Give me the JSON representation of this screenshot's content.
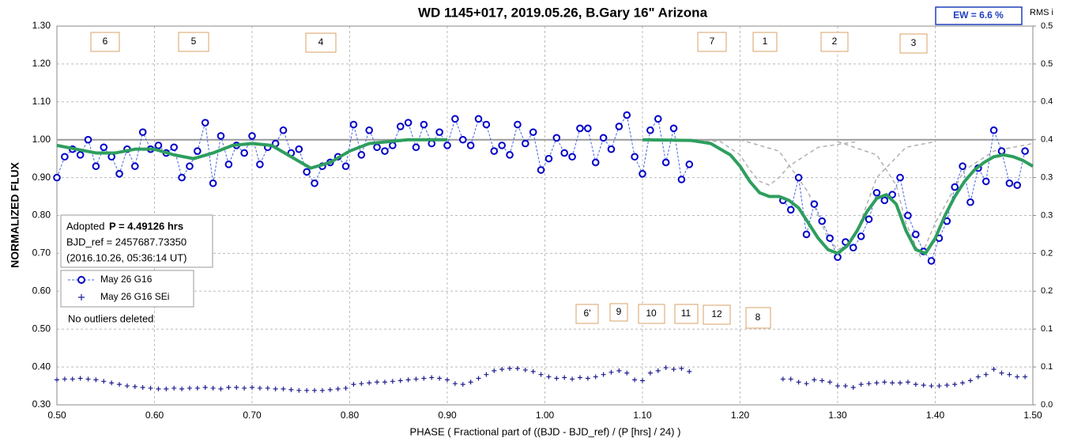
{
  "chart_data": {
    "type": "scatter",
    "title": "WD 1145+017, 2019.05.26, B.Gary 16\" Arizona",
    "xlabel": "PHASE ( Fractional part of ((BJD - BJD_ref) / (P [hrs] / 24) )",
    "ylabel": "NORMALIZED FLUX",
    "y2label": "RMS i",
    "xlim": [
      0.5,
      1.5
    ],
    "xticks": [
      {
        "value": 0.5,
        "label": "0.50"
      },
      {
        "value": 0.6,
        "label": "0.60"
      },
      {
        "value": 0.7,
        "label": "0.70"
      },
      {
        "value": 0.8,
        "label": "0.80"
      },
      {
        "value": 0.9,
        "label": "0.90"
      },
      {
        "value": 1.0,
        "label": "1.00"
      },
      {
        "value": 1.1,
        "label": "1.10"
      },
      {
        "value": 1.2,
        "label": "1.20"
      },
      {
        "value": 1.3,
        "label": "1.30"
      },
      {
        "value": 1.4,
        "label": "1.40"
      },
      {
        "value": 1.5,
        "label": "1.50"
      }
    ],
    "ylim": [
      0.3,
      1.3
    ],
    "yticks": [
      {
        "value": 0.3,
        "label": "0.30"
      },
      {
        "value": 0.4,
        "label": "0.40"
      },
      {
        "value": 0.5,
        "label": "0.50"
      },
      {
        "value": 0.6,
        "label": "0.60"
      },
      {
        "value": 0.7,
        "label": "0.70"
      },
      {
        "value": 0.8,
        "label": "0.80"
      },
      {
        "value": 0.9,
        "label": "0.90"
      },
      {
        "value": 1.0,
        "label": "1.00"
      },
      {
        "value": 1.1,
        "label": "1.10"
      },
      {
        "value": 1.2,
        "label": "1.20"
      },
      {
        "value": 1.3,
        "label": "1.30"
      }
    ],
    "y2lim": [
      0,
      0.5
    ],
    "y2ticks": [
      {
        "value": 0,
        "label": "0.0"
      },
      {
        "value": 0.05,
        "label": "0.1"
      },
      {
        "value": 0.1,
        "label": "0.1"
      },
      {
        "value": 0.15,
        "label": "0.2"
      },
      {
        "value": 0.2,
        "label": "0.2"
      },
      {
        "value": 0.25,
        "label": "0.3"
      },
      {
        "value": 0.3,
        "label": "0.3"
      },
      {
        "value": 0.35,
        "label": "0.4"
      },
      {
        "value": 0.4,
        "label": "0.4"
      },
      {
        "value": 0.45,
        "label": "0.5"
      },
      {
        "value": 0.5,
        "label": "0.5"
      }
    ],
    "grid": true,
    "baseline": 1,
    "series": [
      {
        "name": "May 26 G16",
        "color": "#0000c8",
        "marker": "circle",
        "x": [
          0.5,
          0.508,
          0.516,
          0.524,
          0.532,
          0.54,
          0.548,
          0.556,
          0.564,
          0.572,
          0.58,
          0.588,
          0.596,
          0.604,
          0.612,
          0.62,
          0.628,
          0.636,
          0.644,
          0.652,
          0.66,
          0.668,
          0.676,
          0.684,
          0.692,
          0.7,
          0.708,
          0.716,
          0.724,
          0.732,
          0.74,
          0.748,
          0.756,
          0.764,
          0.772,
          0.78,
          0.788,
          0.796,
          0.804,
          0.812,
          0.82,
          0.828,
          0.836,
          0.844,
          0.852,
          0.86,
          0.868,
          0.876,
          0.884,
          0.892,
          0.9,
          0.908,
          0.916,
          0.924,
          0.932,
          0.94,
          0.948,
          0.956,
          0.964,
          0.972,
          0.98,
          0.988,
          0.996,
          1.004,
          1.012,
          1.02,
          1.028,
          1.036,
          1.044,
          1.052,
          1.06,
          1.068,
          1.076,
          1.084,
          1.092,
          1.1,
          1.108,
          1.116,
          1.124,
          1.132,
          1.14,
          1.148,
          1.244,
          1.252,
          1.26,
          1.268,
          1.276,
          1.284,
          1.292,
          1.3,
          1.308,
          1.316,
          1.324,
          1.332,
          1.34,
          1.348,
          1.356,
          1.364,
          1.372,
          1.38,
          1.388,
          1.396,
          1.404,
          1.412,
          1.42,
          1.428,
          1.436,
          1.444,
          1.452,
          1.46,
          1.468,
          1.476,
          1.484,
          1.492
        ],
        "values": [
          0.9,
          0.955,
          0.975,
          0.96,
          1.0,
          0.93,
          0.98,
          0.955,
          0.91,
          0.975,
          0.93,
          1.02,
          0.975,
          0.985,
          0.965,
          0.98,
          0.9,
          0.93,
          0.97,
          1.045,
          0.885,
          1.01,
          0.935,
          0.985,
          0.965,
          1.01,
          0.935,
          0.98,
          0.99,
          1.025,
          0.965,
          0.975,
          0.915,
          0.885,
          0.93,
          0.94,
          0.955,
          0.93,
          1.04,
          0.96,
          1.025,
          0.98,
          0.97,
          0.985,
          1.035,
          1.045,
          0.98,
          1.04,
          0.99,
          1.02,
          0.985,
          1.055,
          1.0,
          0.985,
          1.055,
          1.04,
          0.97,
          0.985,
          0.96,
          1.04,
          0.99,
          1.02,
          0.92,
          0.95,
          1.005,
          0.965,
          0.955,
          1.03,
          1.03,
          0.94,
          1.005,
          0.975,
          1.035,
          1.065,
          0.955,
          0.91,
          1.025,
          1.055,
          0.94,
          1.03,
          0.895,
          0.935,
          0.84,
          0.815,
          0.9,
          0.75,
          0.83,
          0.785,
          0.74,
          0.69,
          0.73,
          0.715,
          0.745,
          0.79,
          0.86,
          0.84,
          0.855,
          0.9,
          0.8,
          0.75,
          0.705,
          0.68,
          0.74,
          0.785,
          0.875,
          0.93,
          0.835,
          0.925,
          0.89,
          1.025,
          0.97,
          0.885,
          0.88,
          0.97
        ]
      },
      {
        "name": "May 26 G16 SEi",
        "color": "#1f1f8f",
        "marker": "plus",
        "axis": "y2",
        "x": [
          0.5,
          0.508,
          0.516,
          0.524,
          0.532,
          0.54,
          0.548,
          0.556,
          0.564,
          0.572,
          0.58,
          0.588,
          0.596,
          0.604,
          0.612,
          0.62,
          0.628,
          0.636,
          0.644,
          0.652,
          0.66,
          0.668,
          0.676,
          0.684,
          0.692,
          0.7,
          0.708,
          0.716,
          0.724,
          0.732,
          0.74,
          0.748,
          0.756,
          0.764,
          0.772,
          0.78,
          0.788,
          0.796,
          0.804,
          0.812,
          0.82,
          0.828,
          0.836,
          0.844,
          0.852,
          0.86,
          0.868,
          0.876,
          0.884,
          0.892,
          0.9,
          0.908,
          0.916,
          0.924,
          0.932,
          0.94,
          0.948,
          0.956,
          0.964,
          0.972,
          0.98,
          0.988,
          0.996,
          1.004,
          1.012,
          1.02,
          1.028,
          1.036,
          1.044,
          1.052,
          1.06,
          1.068,
          1.076,
          1.084,
          1.092,
          1.1,
          1.108,
          1.116,
          1.124,
          1.132,
          1.14,
          1.148,
          1.244,
          1.252,
          1.26,
          1.268,
          1.276,
          1.284,
          1.292,
          1.3,
          1.308,
          1.316,
          1.324,
          1.332,
          1.34,
          1.348,
          1.356,
          1.364,
          1.372,
          1.38,
          1.388,
          1.396,
          1.404,
          1.412,
          1.42,
          1.428,
          1.436,
          1.444,
          1.452,
          1.46,
          1.468,
          1.476,
          1.484,
          1.492
        ],
        "values": [
          0.033,
          0.034,
          0.034,
          0.035,
          0.034,
          0.033,
          0.031,
          0.029,
          0.027,
          0.025,
          0.024,
          0.023,
          0.022,
          0.021,
          0.021,
          0.022,
          0.021,
          0.022,
          0.022,
          0.023,
          0.022,
          0.021,
          0.023,
          0.023,
          0.022,
          0.023,
          0.022,
          0.022,
          0.021,
          0.021,
          0.02,
          0.019,
          0.019,
          0.019,
          0.019,
          0.02,
          0.021,
          0.022,
          0.027,
          0.028,
          0.029,
          0.03,
          0.03,
          0.031,
          0.032,
          0.033,
          0.034,
          0.035,
          0.036,
          0.035,
          0.033,
          0.028,
          0.027,
          0.03,
          0.035,
          0.04,
          0.045,
          0.047,
          0.048,
          0.048,
          0.046,
          0.044,
          0.04,
          0.037,
          0.035,
          0.036,
          0.034,
          0.036,
          0.035,
          0.037,
          0.04,
          0.043,
          0.045,
          0.042,
          0.033,
          0.032,
          0.042,
          0.045,
          0.049,
          0.047,
          0.048,
          0.044,
          0.034,
          0.034,
          0.03,
          0.028,
          0.033,
          0.032,
          0.03,
          0.025,
          0.025,
          0.023,
          0.027,
          0.028,
          0.029,
          0.03,
          0.029,
          0.029,
          0.03,
          0.027,
          0.026,
          0.025,
          0.025,
          0.026,
          0.027,
          0.029,
          0.032,
          0.037,
          0.04,
          0.047,
          0.042,
          0.04,
          0.037,
          0.037
        ]
      }
    ],
    "model": {
      "color": "#2e9e5e",
      "x": [
        0.5,
        0.52,
        0.54,
        0.56,
        0.58,
        0.6,
        0.62,
        0.64,
        0.66,
        0.68,
        0.7,
        0.72,
        0.74,
        0.76,
        0.78,
        0.8,
        0.82,
        0.84,
        0.86,
        0.9,
        1.0,
        1.1,
        1.15,
        1.17,
        1.19,
        1.2,
        1.21,
        1.22,
        1.23,
        1.24,
        1.25,
        1.26,
        1.27,
        1.28,
        1.29,
        1.3,
        1.31,
        1.32,
        1.33,
        1.34,
        1.35,
        1.36,
        1.37,
        1.38,
        1.39,
        1.4,
        1.41,
        1.42,
        1.43,
        1.44,
        1.45,
        1.46,
        1.47,
        1.48,
        1.49,
        1.5
      ],
      "values": [
        0.985,
        0.975,
        0.965,
        0.965,
        0.975,
        0.975,
        0.96,
        0.95,
        0.965,
        0.985,
        0.99,
        0.985,
        0.955,
        0.925,
        0.94,
        0.97,
        0.99,
        0.995,
        1.0,
        1.0,
        1.0,
        1.0,
        0.998,
        0.99,
        0.96,
        0.93,
        0.89,
        0.86,
        0.85,
        0.85,
        0.84,
        0.82,
        0.78,
        0.74,
        0.71,
        0.7,
        0.72,
        0.76,
        0.81,
        0.845,
        0.855,
        0.83,
        0.76,
        0.71,
        0.7,
        0.74,
        0.8,
        0.85,
        0.89,
        0.92,
        0.94,
        0.955,
        0.96,
        0.955,
        0.945,
        0.93
      ]
    },
    "components": [
      {
        "color": "#b0b0b0",
        "x": [
          1.15,
          1.18,
          1.2,
          1.21,
          1.22,
          1.23,
          1.24,
          1.25,
          1.28,
          1.32,
          1.4
        ],
        "values": [
          1.0,
          0.995,
          0.96,
          0.92,
          0.89,
          0.88,
          0.9,
          0.93,
          0.98,
          0.995,
          1.0
        ]
      },
      {
        "color": "#b0b0b0",
        "x": [
          1.2,
          1.24,
          1.27,
          1.29,
          1.3,
          1.31,
          1.32,
          1.34,
          1.37,
          1.4,
          1.45
        ],
        "values": [
          1.0,
          0.97,
          0.86,
          0.74,
          0.71,
          0.72,
          0.76,
          0.9,
          0.98,
          0.995,
          1.0
        ]
      },
      {
        "color": "#b0b0b0",
        "x": [
          1.3,
          1.34,
          1.36,
          1.37,
          1.385,
          1.4,
          1.43,
          1.46,
          1.5
        ],
        "values": [
          0.995,
          0.96,
          0.88,
          0.78,
          0.69,
          0.78,
          0.92,
          0.97,
          0.99
        ]
      }
    ],
    "annotations": [
      "6",
      "5",
      "4",
      "7",
      "1",
      "2",
      "3",
      "6'",
      "9",
      "10",
      "11",
      "12",
      "8"
    ],
    "info": {
      "adopted": "Adopted",
      "period": "P = 4.49126 hrs",
      "bjd_ref": "BJD_ref = 2457687.73350",
      "date": "(2016.10.26, 05:36:14 UT)"
    },
    "note": "No outliers deleted",
    "ew": "EW =  6.6 %"
  }
}
